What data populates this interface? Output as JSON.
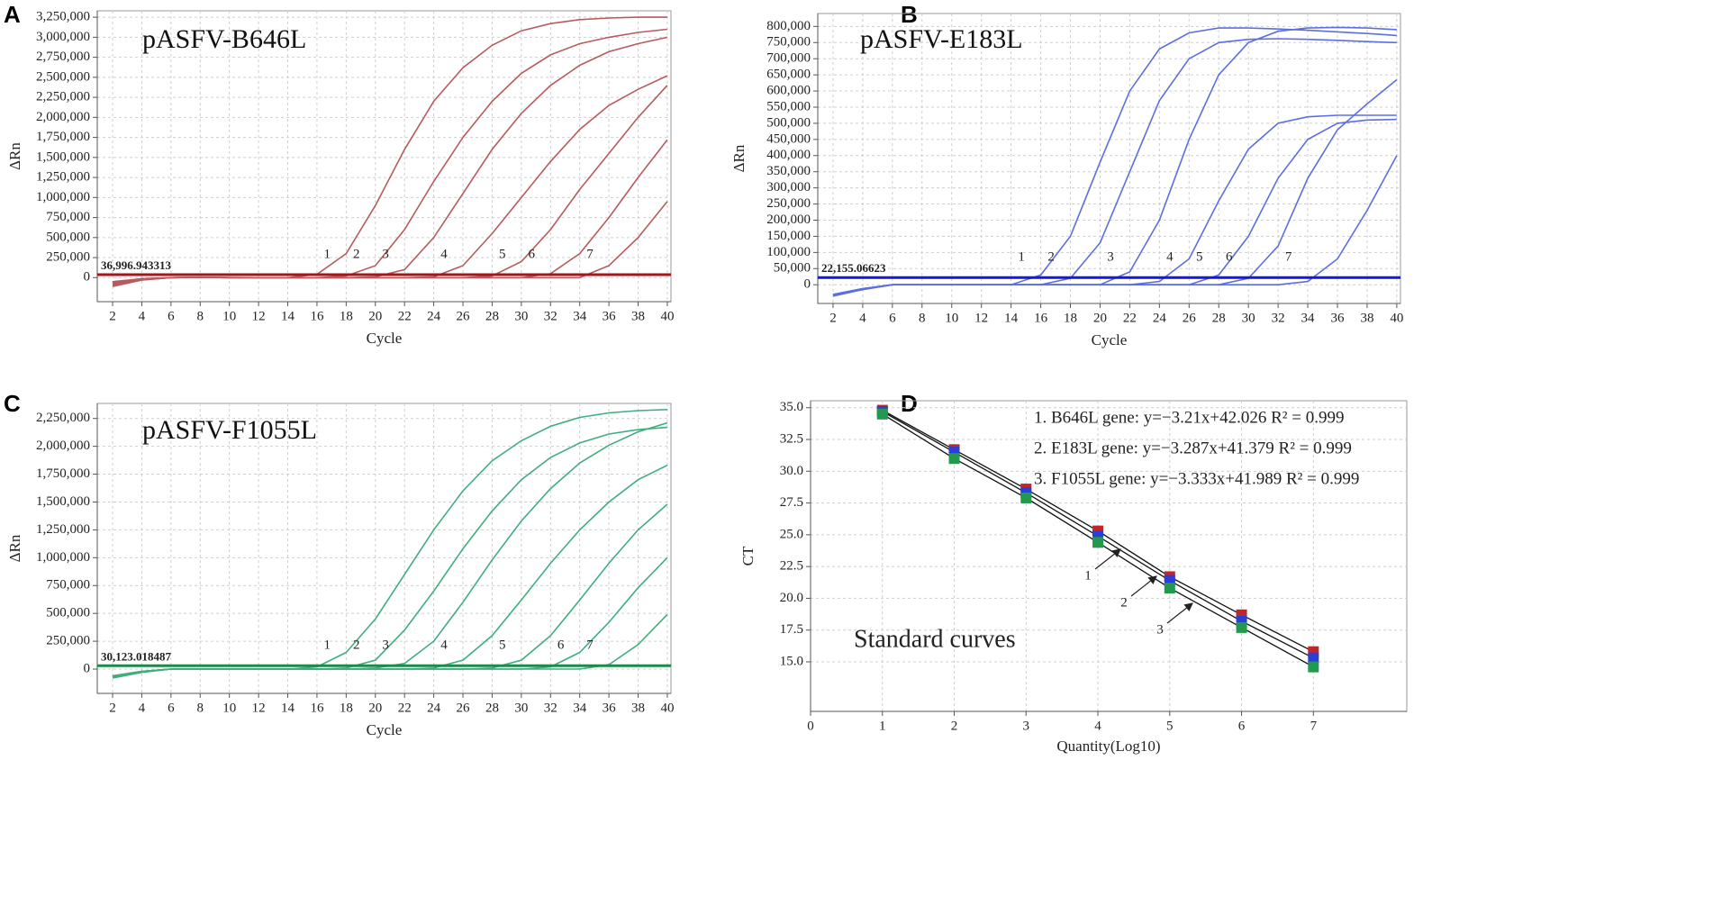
{
  "chart_data": [
    {
      "type": "line",
      "letter": "A",
      "title": "pASFV-B646L",
      "x_label": "Cycle",
      "y_label": "ΔRn",
      "color": "#b85a5e",
      "threshold_color": "#a3161a",
      "threshold": 36996.943313,
      "threshold_label": "36,996.943313",
      "x": [
        2,
        4,
        6,
        8,
        10,
        12,
        14,
        16,
        18,
        20,
        22,
        24,
        26,
        28,
        30,
        32,
        34,
        36,
        38,
        40
      ],
      "xlim": [
        0.95,
        40.25
      ],
      "xticks": [
        2,
        4,
        6,
        8,
        10,
        12,
        14,
        16,
        18,
        20,
        22,
        24,
        26,
        28,
        30,
        32,
        34,
        36,
        38,
        40
      ],
      "ylim": [
        -300000,
        3330000
      ],
      "yticks": [
        0,
        {
          "value": 250000,
          "label": "250,000"
        },
        {
          "value": 500000,
          "label": "500,000"
        },
        {
          "value": 750000,
          "label": "750,000"
        },
        {
          "value": 1000000,
          "label": "1,000,000"
        },
        {
          "value": 1250000,
          "label": "1,250,000"
        },
        {
          "value": 1500000,
          "label": "1,500,000"
        },
        {
          "value": 1750000,
          "label": "1,750,000"
        },
        {
          "value": 2000000,
          "label": "2,000,000"
        },
        {
          "value": 2250000,
          "label": "2,250,000"
        },
        {
          "value": 2500000,
          "label": "2,500,000"
        },
        {
          "value": 2750000,
          "label": "2,750,000"
        },
        {
          "value": 3000000,
          "label": "3,000,000"
        },
        {
          "value": 3250000,
          "label": "3,250,000"
        }
      ],
      "grid": true,
      "series": [
        {
          "name": "1",
          "values": [
            -80000,
            -20000,
            0,
            5000,
            3000,
            0,
            0,
            40000,
            300000,
            900000,
            1600000,
            2200000,
            2620000,
            2900000,
            3080000,
            3170000,
            3220000,
            3240000,
            3250000,
            3250000
          ]
        },
        {
          "name": "2",
          "values": [
            -100000,
            -30000,
            0,
            5000,
            0,
            0,
            0,
            0,
            20000,
            150000,
            600000,
            1200000,
            1750000,
            2200000,
            2550000,
            2780000,
            2920000,
            3000000,
            3060000,
            3100000
          ]
        },
        {
          "name": "3",
          "values": [
            -60000,
            -15000,
            0,
            5000,
            0,
            0,
            0,
            0,
            0,
            10000,
            100000,
            500000,
            1050000,
            1600000,
            2050000,
            2400000,
            2650000,
            2820000,
            2920000,
            3000000
          ]
        },
        {
          "name": "4",
          "values": [
            -90000,
            -25000,
            0,
            5000,
            0,
            0,
            0,
            0,
            0,
            0,
            0,
            10000,
            150000,
            550000,
            1000000,
            1450000,
            1850000,
            2150000,
            2350000,
            2520000
          ]
        },
        {
          "name": "5",
          "values": [
            -70000,
            -20000,
            0,
            5000,
            0,
            0,
            0,
            0,
            0,
            0,
            0,
            0,
            0,
            20000,
            200000,
            600000,
            1100000,
            1550000,
            2000000,
            2400000
          ]
        },
        {
          "name": "6",
          "values": [
            -110000,
            -30000,
            0,
            5000,
            0,
            0,
            0,
            0,
            0,
            0,
            0,
            0,
            0,
            0,
            0,
            50000,
            300000,
            750000,
            1250000,
            1720000
          ]
        },
        {
          "name": "7",
          "values": [
            -50000,
            -15000,
            0,
            5000,
            0,
            0,
            0,
            0,
            0,
            0,
            0,
            0,
            0,
            0,
            0,
            0,
            0,
            150000,
            500000,
            950000
          ]
        }
      ]
    },
    {
      "type": "line",
      "letter": "B",
      "title": "pASFV-E183L",
      "x_label": "Cycle",
      "y_label": "ΔRn",
      "color": "#5d6ee0",
      "threshold_color": "#1717d8",
      "threshold": 22155.06623,
      "threshold_label": "22,155.06623",
      "x": [
        2,
        4,
        6,
        8,
        10,
        12,
        14,
        16,
        18,
        20,
        22,
        24,
        26,
        28,
        30,
        32,
        34,
        36,
        38,
        40
      ],
      "xlim": [
        0.97,
        40.25
      ],
      "xticks": [
        2,
        4,
        6,
        8,
        10,
        12,
        14,
        16,
        18,
        20,
        22,
        24,
        26,
        28,
        30,
        32,
        34,
        36,
        38,
        40
      ],
      "ylim": [
        -58000,
        840000
      ],
      "yticks": [
        0,
        {
          "value": 50000,
          "label": "50,000"
        },
        {
          "value": 100000,
          "label": "100,000"
        },
        {
          "value": 150000,
          "label": "150,000"
        },
        {
          "value": 200000,
          "label": "200,000"
        },
        {
          "value": 250000,
          "label": "250,000"
        },
        {
          "value": 300000,
          "label": "300,000"
        },
        {
          "value": 350000,
          "label": "350,000"
        },
        {
          "value": 400000,
          "label": "400,000"
        },
        {
          "value": 450000,
          "label": "450,000"
        },
        {
          "value": 500000,
          "label": "500,000"
        },
        {
          "value": 550000,
          "label": "550,000"
        },
        {
          "value": 600000,
          "label": "600,000"
        },
        {
          "value": 650000,
          "label": "650,000"
        },
        {
          "value": 700000,
          "label": "700,000"
        },
        {
          "value": 750000,
          "label": "750,000"
        },
        {
          "value": 800000,
          "label": "800,000"
        }
      ],
      "grid": true,
      "series": [
        {
          "name": "1",
          "values": [
            -30000,
            -15000,
            0,
            0,
            0,
            0,
            0,
            30000,
            150000,
            380000,
            600000,
            730000,
            780000,
            795000,
            795000,
            792000,
            788000,
            783000,
            778000,
            772000
          ]
        },
        {
          "name": "2",
          "values": [
            -35000,
            -15000,
            0,
            0,
            0,
            0,
            0,
            0,
            20000,
            130000,
            350000,
            570000,
            700000,
            750000,
            760000,
            762000,
            760000,
            757000,
            753000,
            750000
          ]
        },
        {
          "name": "3",
          "values": [
            -30000,
            -12000,
            0,
            0,
            0,
            0,
            0,
            0,
            0,
            0,
            40000,
            200000,
            450000,
            650000,
            750000,
            785000,
            795000,
            797000,
            795000,
            790000
          ]
        },
        {
          "name": "4",
          "values": [
            -32000,
            -14000,
            0,
            0,
            0,
            0,
            0,
            0,
            0,
            0,
            0,
            10000,
            80000,
            260000,
            420000,
            500000,
            520000,
            525000,
            525000,
            525000
          ]
        },
        {
          "name": "5",
          "values": [
            -30000,
            -12000,
            0,
            0,
            0,
            0,
            0,
            0,
            0,
            0,
            0,
            0,
            0,
            30000,
            150000,
            330000,
            450000,
            500000,
            510000,
            512000
          ]
        },
        {
          "name": "6",
          "values": [
            -33000,
            -14000,
            0,
            0,
            0,
            0,
            0,
            0,
            0,
            0,
            0,
            0,
            0,
            0,
            20000,
            120000,
            330000,
            480000,
            560000,
            635000
          ]
        },
        {
          "name": "7",
          "values": [
            -30000,
            -12000,
            0,
            0,
            0,
            0,
            0,
            0,
            0,
            0,
            0,
            0,
            0,
            0,
            0,
            0,
            10000,
            80000,
            230000,
            400000
          ]
        }
      ]
    },
    {
      "type": "line",
      "letter": "C",
      "title": "pASFV-F1055L",
      "x_label": "Cycle",
      "y_label": "ΔRn",
      "color": "#3fae7e",
      "threshold_color": "#1d8a4c",
      "threshold": 30123.018487,
      "threshold_label": "30,123.018487",
      "x": [
        2,
        4,
        6,
        8,
        10,
        12,
        14,
        16,
        18,
        20,
        22,
        24,
        26,
        28,
        30,
        32,
        34,
        36,
        38,
        40
      ],
      "xlim": [
        0.95,
        40.25
      ],
      "xticks": [
        2,
        4,
        6,
        8,
        10,
        12,
        14,
        16,
        18,
        20,
        22,
        24,
        26,
        28,
        30,
        32,
        34,
        36,
        38,
        40
      ],
      "ylim": [
        -218000,
        2385000
      ],
      "yticks": [
        0,
        {
          "value": 250000,
          "label": "250,000"
        },
        {
          "value": 500000,
          "label": "500,000"
        },
        {
          "value": 750000,
          "label": "750,000"
        },
        {
          "value": 1000000,
          "label": "1,000,000"
        },
        {
          "value": 1250000,
          "label": "1,250,000"
        },
        {
          "value": 1500000,
          "label": "1,500,000"
        },
        {
          "value": 1750000,
          "label": "1,750,000"
        },
        {
          "value": 2000000,
          "label": "2,000,000"
        },
        {
          "value": 2250000,
          "label": "2,250,000"
        }
      ],
      "grid": true,
      "series": [
        {
          "name": "1",
          "values": [
            -80000,
            -30000,
            0,
            0,
            0,
            0,
            0,
            20000,
            150000,
            450000,
            850000,
            1250000,
            1600000,
            1870000,
            2050000,
            2180000,
            2260000,
            2300000,
            2320000,
            2330000
          ]
        },
        {
          "name": "2",
          "values": [
            -70000,
            -25000,
            0,
            0,
            0,
            0,
            0,
            0,
            10000,
            80000,
            350000,
            700000,
            1080000,
            1420000,
            1700000,
            1900000,
            2030000,
            2110000,
            2150000,
            2170000
          ]
        },
        {
          "name": "3",
          "values": [
            -60000,
            -20000,
            0,
            0,
            0,
            0,
            0,
            0,
            0,
            10000,
            50000,
            250000,
            600000,
            980000,
            1330000,
            1620000,
            1850000,
            2010000,
            2130000,
            2210000
          ]
        },
        {
          "name": "4",
          "values": [
            -75000,
            -25000,
            0,
            0,
            0,
            0,
            0,
            0,
            0,
            0,
            0,
            10000,
            80000,
            300000,
            620000,
            950000,
            1250000,
            1500000,
            1700000,
            1830000
          ]
        },
        {
          "name": "5",
          "values": [
            -65000,
            -20000,
            0,
            0,
            0,
            0,
            0,
            0,
            0,
            0,
            0,
            0,
            0,
            10000,
            80000,
            300000,
            620000,
            950000,
            1250000,
            1480000
          ]
        },
        {
          "name": "6",
          "values": [
            -70000,
            -25000,
            0,
            0,
            0,
            0,
            0,
            0,
            0,
            0,
            0,
            0,
            0,
            0,
            0,
            20000,
            150000,
            420000,
            730000,
            1000000
          ]
        },
        {
          "name": "7",
          "values": [
            -60000,
            -20000,
            0,
            0,
            0,
            0,
            0,
            0,
            0,
            0,
            0,
            0,
            0,
            0,
            0,
            0,
            0,
            40000,
            220000,
            490000
          ]
        }
      ]
    },
    {
      "type": "scatter",
      "letter": "D",
      "x_label": "Quantity(Log10)",
      "y_label": "CT",
      "annotation": "Standard curves",
      "x": [
        1,
        2,
        3,
        4,
        5,
        6,
        7
      ],
      "xlim": [
        0,
        8.3
      ],
      "xticks": [
        0,
        1,
        2,
        3,
        4,
        5,
        6,
        7
      ],
      "ylim": [
        11.1,
        35.55
      ],
      "yticks": [
        {
          "value": 15,
          "label": "15.0"
        },
        {
          "value": 17.5,
          "label": "17.5"
        },
        {
          "value": 20,
          "label": "20.0"
        },
        {
          "value": 22.5,
          "label": "22.5"
        },
        {
          "value": 25,
          "label": "25.0"
        },
        {
          "value": 27.5,
          "label": "27.5"
        },
        {
          "value": 30,
          "label": "30.0"
        },
        {
          "value": 32.5,
          "label": "32.5"
        },
        {
          "value": 35,
          "label": "35.0"
        }
      ],
      "grid": true,
      "line_labels": [
        "1",
        "2",
        "3"
      ],
      "series": [
        {
          "name": "1. B646L gene: y=−3.21x+42.026 R² = 0.999",
          "color": "#c0272d",
          "values": [
            34.8,
            31.7,
            28.6,
            25.3,
            21.7,
            18.7,
            15.8
          ]
        },
        {
          "name": "2. E183L gene: y=−3.287x+41.379  R² = 0.999",
          "color": "#2a3fd6",
          "values": [
            34.7,
            31.5,
            28.3,
            24.9,
            21.4,
            18.2,
            15.3
          ]
        },
        {
          "name": "3. F1055L gene: y=−3.333x+41.989  R² = 0.999",
          "color": "#22994f",
          "values": [
            34.5,
            31.0,
            27.9,
            24.4,
            20.8,
            17.7,
            14.6
          ]
        }
      ]
    }
  ]
}
